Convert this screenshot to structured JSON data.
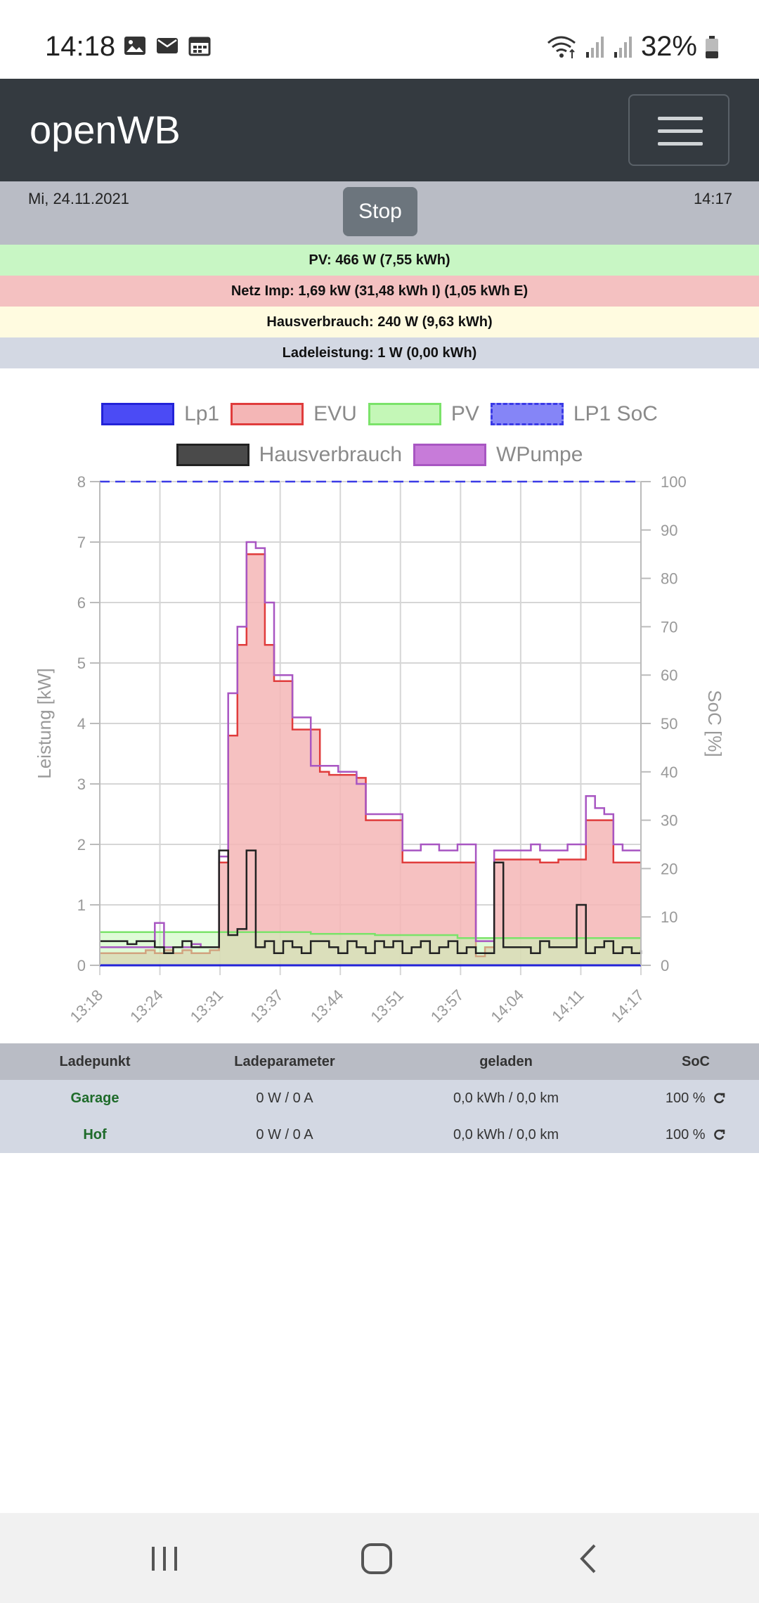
{
  "status_bar": {
    "time": "14:18",
    "battery": "32%",
    "icons_left": [
      "gallery-icon",
      "mail-icon",
      "calendar-icon"
    ],
    "icons_right": [
      "wifi-icon",
      "signal-icon",
      "signal-icon",
      "battery-icon"
    ]
  },
  "navbar": {
    "brand": "openWB",
    "menu_icon": "hamburger-icon"
  },
  "info": {
    "date": "Mi, 24.11.2021",
    "time": "14:17",
    "stop_label": "Stop"
  },
  "summary": {
    "pv": "PV: 466 W (7,55 kWh)",
    "evu": "Netz Imp: 1,69 kW (31,48 kWh I) (1,05 kWh E)",
    "haus": "Hausverbrauch: 240 W (9,63 kWh)",
    "lade": "Ladeleistung: 1 W (0,00 kWh)"
  },
  "legend": [
    {
      "name": "Lp1",
      "fill": "#4b4bf5",
      "border": "#2323d8",
      "dashed": false
    },
    {
      "name": "EVU",
      "fill": "#f4b6b6",
      "border": "#e03c3c",
      "dashed": false
    },
    {
      "name": "PV",
      "fill": "#c4f7b7",
      "border": "#7be36a",
      "dashed": false
    },
    {
      "name": "LP1 SoC",
      "fill": "#8585f7",
      "border": "#3a3ae6",
      "dashed": true
    },
    {
      "name": "Hausverbrauch",
      "fill": "#4a4a4a",
      "border": "#222222",
      "dashed": false
    },
    {
      "name": "WPumpe",
      "fill": "#c77bd9",
      "border": "#a856c2",
      "dashed": false
    }
  ],
  "chart_data": {
    "type": "line",
    "ylabel": "Leistung [kW]",
    "y2label": "SoC [%]",
    "ylim": [
      0,
      8
    ],
    "y2lim": [
      0,
      100
    ],
    "yticks": [
      "0",
      "1",
      "2",
      "3",
      "4",
      "5",
      "6",
      "7",
      "8"
    ],
    "y2ticks": [
      "0",
      "10",
      "20",
      "30",
      "40",
      "50",
      "60",
      "70",
      "80",
      "90",
      "100"
    ],
    "xticks": [
      "13:18",
      "13:24",
      "13:31",
      "13:37",
      "13:44",
      "13:51",
      "13:57",
      "14:04",
      "14:11",
      "14:17"
    ],
    "x_minutes": [
      0,
      1,
      2,
      3,
      4,
      5,
      6,
      7,
      8,
      9,
      10,
      11,
      12,
      13,
      14,
      15,
      16,
      17,
      18,
      19,
      20,
      21,
      22,
      23,
      24,
      25,
      26,
      27,
      28,
      29,
      30,
      31,
      32,
      33,
      34,
      35,
      36,
      37,
      38,
      39,
      40,
      41,
      42,
      43,
      44,
      45,
      46,
      47,
      48,
      49,
      50,
      51,
      52,
      53,
      54,
      55,
      56,
      57,
      58,
      59
    ],
    "series": [
      {
        "name": "EVU",
        "values": [
          0.2,
          0.2,
          0.2,
          0.2,
          0.2,
          0.25,
          0.2,
          0.25,
          0.2,
          0.25,
          0.2,
          0.2,
          0.25,
          1.7,
          3.8,
          5.3,
          6.8,
          6.8,
          5.3,
          4.7,
          4.7,
          3.9,
          3.9,
          3.9,
          3.2,
          3.15,
          3.15,
          3.15,
          3.1,
          2.4,
          2.4,
          2.4,
          2.4,
          1.7,
          1.7,
          1.7,
          1.7,
          1.7,
          1.7,
          1.7,
          1.7,
          0.15,
          0.3,
          1.75,
          1.75,
          1.75,
          1.75,
          1.75,
          1.7,
          1.7,
          1.75,
          1.75,
          1.75,
          2.4,
          2.4,
          2.4,
          1.7,
          1.7,
          1.7,
          1.7
        ]
      },
      {
        "name": "PV",
        "values": [
          0.55,
          0.55,
          0.55,
          0.55,
          0.55,
          0.55,
          0.55,
          0.55,
          0.55,
          0.55,
          0.55,
          0.55,
          0.55,
          0.55,
          0.55,
          0.55,
          0.55,
          0.55,
          0.55,
          0.55,
          0.55,
          0.55,
          0.55,
          0.52,
          0.52,
          0.52,
          0.52,
          0.52,
          0.52,
          0.52,
          0.5,
          0.5,
          0.5,
          0.5,
          0.5,
          0.5,
          0.5,
          0.5,
          0.5,
          0.45,
          0.45,
          0.45,
          0.45,
          0.45,
          0.45,
          0.45,
          0.45,
          0.45,
          0.45,
          0.45,
          0.45,
          0.45,
          0.45,
          0.45,
          0.45,
          0.45,
          0.45,
          0.45,
          0.45,
          0.45
        ]
      },
      {
        "name": "Hausverbrauch",
        "values": [
          0.4,
          0.4,
          0.4,
          0.35,
          0.4,
          0.4,
          0.3,
          0.2,
          0.3,
          0.4,
          0.3,
          0.3,
          0.3,
          1.9,
          0.5,
          0.6,
          1.9,
          0.3,
          0.4,
          0.2,
          0.4,
          0.3,
          0.2,
          0.4,
          0.4,
          0.3,
          0.2,
          0.4,
          0.3,
          0.2,
          0.4,
          0.3,
          0.4,
          0.2,
          0.3,
          0.4,
          0.2,
          0.3,
          0.4,
          0.2,
          0.3,
          0.2,
          0.2,
          1.7,
          0.3,
          0.3,
          0.3,
          0.2,
          0.4,
          0.3,
          0.3,
          0.3,
          1.0,
          0.2,
          0.3,
          0.4,
          0.2,
          0.3,
          0.2,
          0.25
        ]
      },
      {
        "name": "WPumpe",
        "values": [
          0.3,
          0.3,
          0.3,
          0.3,
          0.3,
          0.3,
          0.7,
          0.3,
          0.3,
          0.3,
          0.35,
          0.3,
          0.3,
          1.8,
          4.5,
          5.6,
          7.0,
          6.9,
          6.0,
          4.8,
          4.8,
          4.1,
          4.1,
          3.3,
          3.3,
          3.3,
          3.2,
          3.2,
          3.0,
          2.5,
          2.5,
          2.5,
          2.5,
          1.9,
          1.9,
          2.0,
          2.0,
          1.9,
          1.9,
          2.0,
          2.0,
          0.4,
          0.4,
          1.9,
          1.9,
          1.9,
          1.9,
          2.0,
          1.9,
          1.9,
          1.9,
          2.0,
          2.0,
          2.8,
          2.6,
          2.5,
          2.0,
          1.9,
          1.9,
          1.9
        ]
      },
      {
        "name": "Lp1",
        "values": [
          0,
          0,
          0,
          0,
          0,
          0,
          0,
          0,
          0,
          0,
          0,
          0,
          0,
          0,
          0,
          0,
          0,
          0,
          0,
          0,
          0,
          0,
          0,
          0,
          0,
          0,
          0,
          0,
          0,
          0,
          0,
          0,
          0,
          0,
          0,
          0,
          0,
          0,
          0,
          0,
          0,
          0,
          0,
          0,
          0,
          0,
          0,
          0,
          0,
          0,
          0,
          0,
          0,
          0,
          0,
          0,
          0,
          0,
          0,
          0
        ]
      },
      {
        "name": "LP1 SoC",
        "values": [
          100,
          100,
          100,
          100,
          100,
          100,
          100,
          100,
          100,
          100,
          100,
          100,
          100,
          100,
          100,
          100,
          100,
          100,
          100,
          100,
          100,
          100,
          100,
          100,
          100,
          100,
          100,
          100,
          100,
          100,
          100,
          100,
          100,
          100,
          100,
          100,
          100,
          100,
          100,
          100,
          100,
          100,
          100,
          100,
          100,
          100,
          100,
          100,
          100,
          100,
          100,
          100,
          100,
          100,
          100,
          100,
          100,
          100,
          100,
          100
        ]
      }
    ],
    "grid": true,
    "legend_position": "top"
  },
  "table": {
    "headers": [
      "Ladepunkt",
      "Ladeparameter",
      "geladen",
      "SoC"
    ],
    "rows": [
      {
        "name": "Garage",
        "param": "0 W / 0 A",
        "charged": "0,0 kWh / 0,0 km",
        "soc": "100 %"
      },
      {
        "name": "Hof",
        "param": "0 W / 0 A",
        "charged": "0,0 kWh / 0,0 km",
        "soc": "100 %"
      }
    ],
    "refresh_icon": "refresh-icon"
  },
  "bottom_nav": {
    "recent": "recent-apps-icon",
    "home": "home-icon",
    "back": "back-icon"
  }
}
